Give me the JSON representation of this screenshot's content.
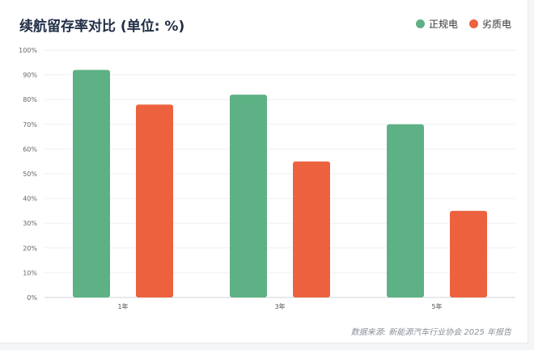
{
  "title": "续航留存率对比 (单位: %)",
  "legend": [
    {
      "name": "正规电",
      "color": "#5db184"
    },
    {
      "name": "劣质电",
      "color": "#ec623f"
    }
  ],
  "source": "数据来源: 新能源汽车行业协会 2025 年报告",
  "chart_data": {
    "type": "bar",
    "title": "续航留存率对比 (单位: %)",
    "categories": [
      "1年",
      "3年",
      "5年"
    ],
    "series": [
      {
        "name": "正规电",
        "values": [
          92,
          82,
          70
        ],
        "color": "#5db184"
      },
      {
        "name": "劣质电",
        "values": [
          78,
          55,
          35
        ],
        "color": "#ec623f"
      }
    ],
    "ylim": [
      0,
      100
    ],
    "yticks": [
      "0%",
      "10%",
      "20%",
      "30%",
      "40%",
      "50%",
      "60%",
      "70%",
      "80%",
      "90%",
      "100%"
    ],
    "grid": true,
    "legend_position": "top-right"
  }
}
